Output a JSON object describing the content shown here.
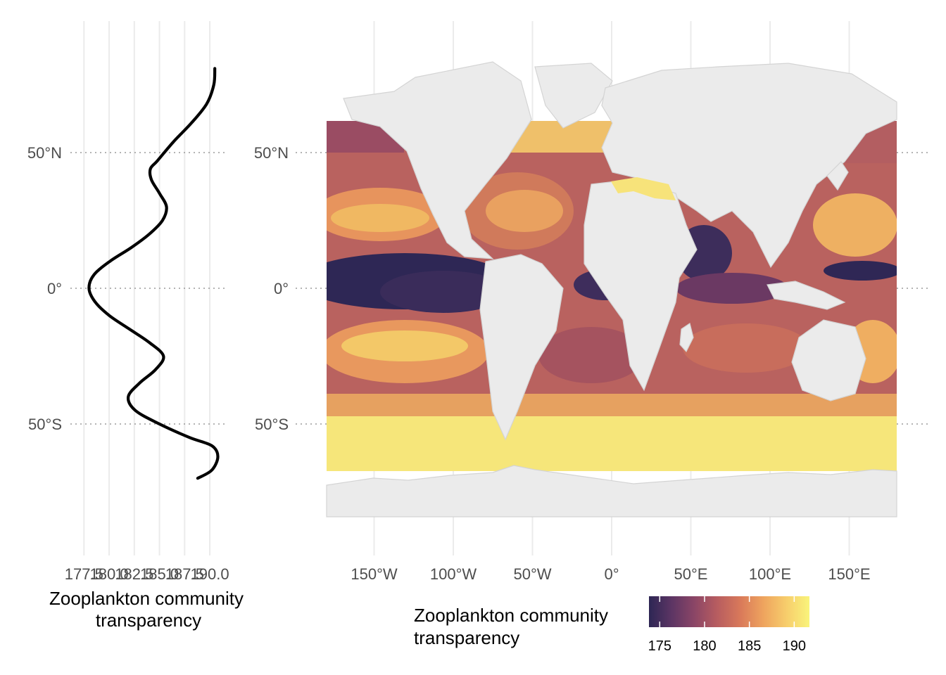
{
  "chart_data": [
    {
      "type": "line",
      "panel": "latitudinal-profile",
      "xlabel": "Zooplankton community transparency",
      "xlabel_lines": [
        "Zooplankton community",
        "transparency"
      ],
      "xlim": [
        176.5,
        191
      ],
      "x_ticks": [
        "177.5",
        "180.0",
        "182.5",
        "185.0",
        "187.5",
        "190.0"
      ],
      "y_ticks": [
        "50°N",
        "0°",
        "50°S"
      ],
      "ylim": [
        -95,
        95
      ],
      "series": [
        {
          "x": [
            190.5,
            190.4,
            189.7,
            188.2,
            186.4,
            184.8,
            184.1,
            184.2,
            185.0,
            185.7,
            185.3,
            184.0,
            182.2,
            180.1,
            178.5,
            178.0,
            178.6,
            180.0,
            182.0,
            184.0,
            185.4,
            184.6,
            183.0,
            181.9,
            182.6,
            185.0,
            188.0,
            190.2,
            190.8,
            190.2,
            188.8
          ],
          "y": [
            81,
            75,
            68,
            61,
            54,
            47,
            44,
            40,
            35,
            30,
            25,
            20,
            15,
            10,
            5,
            0,
            -5,
            -10,
            -15,
            -20,
            -25,
            -30,
            -35,
            -40,
            -45,
            -50,
            -55,
            -58,
            -62,
            -67,
            -70
          ]
        }
      ],
      "grid": true
    },
    {
      "type": "heatmap",
      "panel": "world-map",
      "title": "",
      "x_ticks": [
        "150°W",
        "100°W",
        "50°W",
        "0°",
        "50°E",
        "100°E",
        "150°E"
      ],
      "x_tick_values": [
        -150,
        -100,
        -50,
        0,
        50,
        100,
        150
      ],
      "y_ticks": [
        "50°N",
        "0°",
        "50°S"
      ],
      "y_tick_values": [
        50,
        0,
        -50
      ],
      "xlim": [
        -180,
        180
      ],
      "ylim": [
        -84,
        84
      ],
      "colorbar": {
        "title_lines": [
          "Zooplankton community",
          "transparency"
        ],
        "ticks": [
          "175",
          "180",
          "185",
          "190"
        ],
        "tick_values": [
          175,
          180,
          185,
          190
        ],
        "range": [
          173.8,
          191.7
        ],
        "colors": [
          "#2d2654",
          "#5c3564",
          "#8a4566",
          "#b65c60",
          "#d9795a",
          "#eea35e",
          "#f7ce6c",
          "#f9f47b"
        ]
      },
      "land_color": "#ebebeb",
      "land_border_color": "#d4d4d4",
      "missing_color": "#ffffff"
    }
  ]
}
